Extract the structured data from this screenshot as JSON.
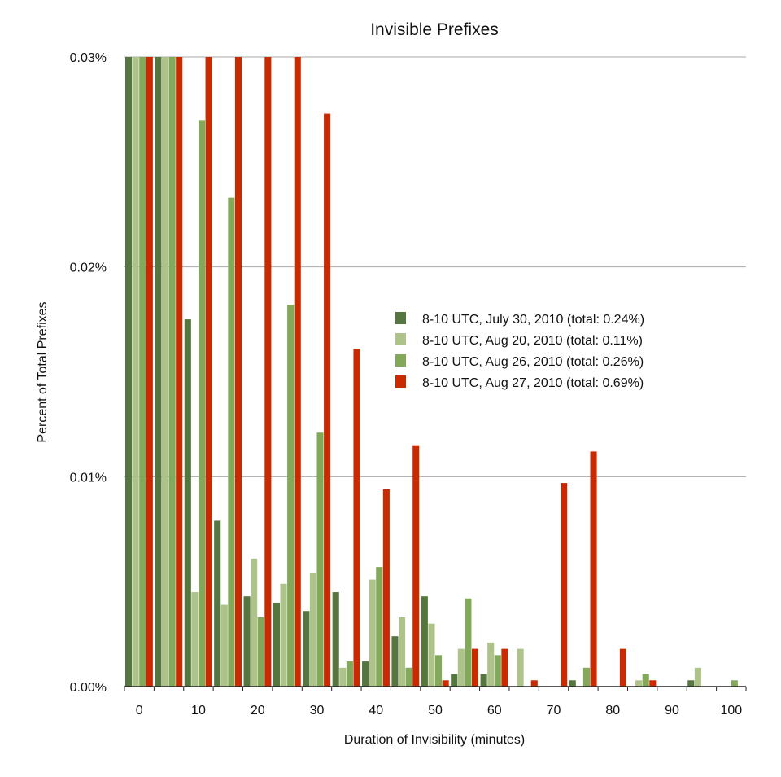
{
  "chart_data": {
    "type": "bar",
    "title": "Invisible Prefixes",
    "xlabel": "Duration of Invisibility (minutes)",
    "ylabel": "Percent of Total Prefixes",
    "ylim": [
      0,
      0.03
    ],
    "y_ticks": [
      0,
      0.01,
      0.02,
      0.03
    ],
    "y_tick_labels": [
      "0.00%",
      "0.01%",
      "0.02%",
      "0.03%"
    ],
    "categories": [
      0,
      5,
      10,
      15,
      20,
      25,
      30,
      35,
      40,
      45,
      50,
      55,
      60,
      65,
      70,
      75,
      80,
      85,
      90,
      95,
      100
    ],
    "x_tick_labels": [
      "0",
      "10",
      "20",
      "30",
      "40",
      "50",
      "60",
      "70",
      "80",
      "90",
      "100"
    ],
    "grid": "horizontal",
    "legend_placement": "center-right",
    "note_values_clipped_at_ylim": true,
    "series": [
      {
        "name": "8-10 UTC, July 30, 2010 (total: 0.24%)",
        "color": "#56763f",
        "values": [
          0.03,
          0.03,
          0.0175,
          0.0079,
          0.0043,
          0.004,
          0.0036,
          0.0045,
          0.0012,
          0.0024,
          0.0043,
          0.0006,
          0.0006,
          0,
          0,
          0.0003,
          0,
          0,
          0,
          0.0003,
          0
        ]
      },
      {
        "name": "8-10 UTC, Aug 20, 2010 (total: 0.11%)",
        "color": "#adc38a",
        "values": [
          0.03,
          0.03,
          0.0045,
          0.0039,
          0.0061,
          0.0049,
          0.0054,
          0.0009,
          0.0051,
          0.0033,
          0.003,
          0.0018,
          0.0021,
          0.0018,
          0,
          0,
          0,
          0.0003,
          0,
          0.0009,
          0
        ]
      },
      {
        "name": "8-10 UTC, Aug 26, 2010 (total: 0.26%)",
        "color": "#82a85a",
        "values": [
          0.03,
          0.03,
          0.027,
          0.0233,
          0.0033,
          0.0182,
          0.0121,
          0.0012,
          0.0057,
          0.0009,
          0.0015,
          0.0042,
          0.0015,
          0,
          0,
          0.0009,
          0,
          0.0006,
          0,
          0,
          0.0003
        ]
      },
      {
        "name": "8-10 UTC, Aug 27, 2010 (total: 0.69%)",
        "color": "#c92a00",
        "values": [
          0.03,
          0.03,
          0.03,
          0.03,
          0.03,
          0.03,
          0.0273,
          0.0161,
          0.0094,
          0.0115,
          0.0003,
          0.0018,
          0.0018,
          0.0003,
          0.0097,
          0.0112,
          0.0018,
          0.0003,
          0,
          0,
          0
        ]
      }
    ]
  }
}
